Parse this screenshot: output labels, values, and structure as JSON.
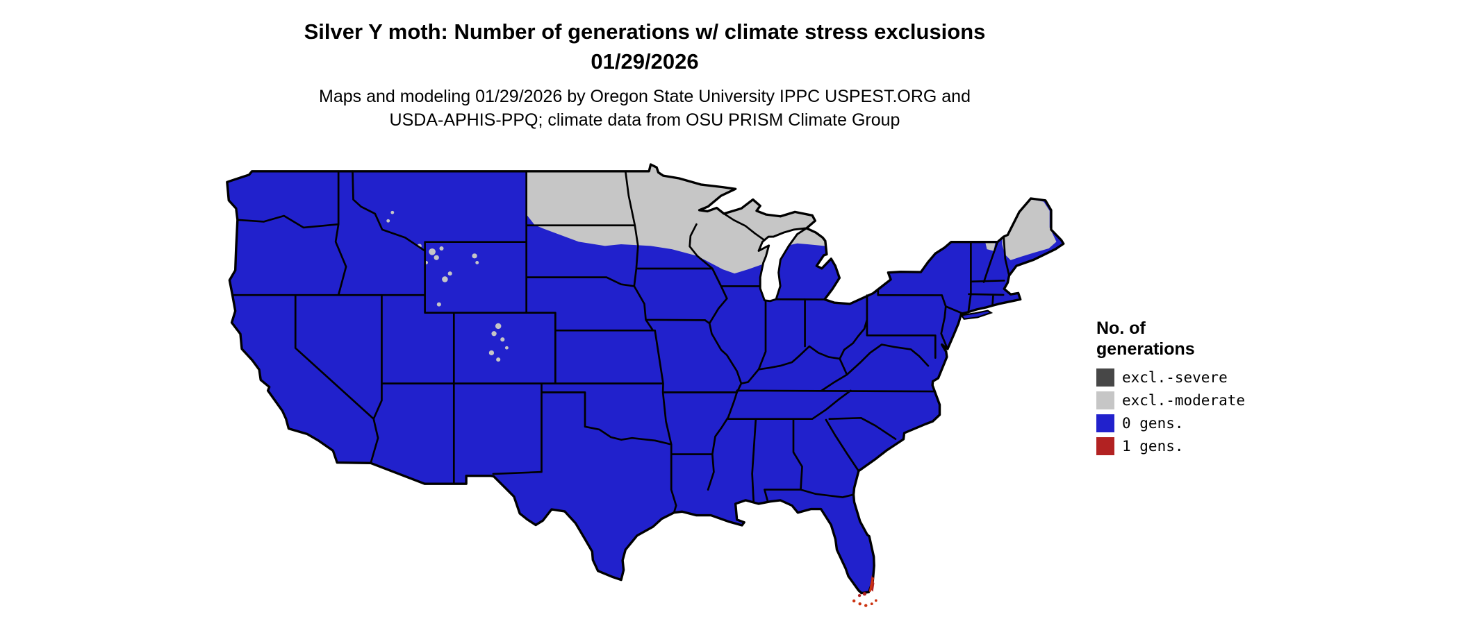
{
  "title": {
    "line1": "Silver Y moth: Number of generations w/ climate stress exclusions",
    "line2": "01/29/2026"
  },
  "subtitle": {
    "line1": "Maps and modeling 01/29/2026 by Oregon State University IPPC USPEST.ORG and",
    "line2": "USDA-APHIS-PPQ; climate data from OSU PRISM Climate Group"
  },
  "legend": {
    "title_line1": "No. of",
    "title_line2": "generations",
    "items": [
      {
        "label": "excl.-severe",
        "color": "#474747"
      },
      {
        "label": "excl.-moderate",
        "color": "#C6C6C6"
      },
      {
        "label": "0 gens.",
        "color": "#2121CC"
      },
      {
        "label": "1 gens.",
        "color": "#B22222"
      }
    ]
  },
  "colors": {
    "background": "#FFFFFF",
    "border": "#000000",
    "excl_severe": "#474747",
    "excl_moderate": "#C6C6C6",
    "zero_gens": "#2121CC",
    "one_gen": "#B22222",
    "one_gen_bright": "#CC3311",
    "water": "#FFFFFF"
  },
  "map": {
    "region": "Conterminous United States",
    "zero_generation_areas": "Most of the conterminous United States (blue)",
    "moderate_exclusion_areas": "North Dakota, Minnesota, Wisconsin, upper and northern Michigan, northern Maine, scattered Rocky Mountain high elevations (gray)",
    "one_generation_areas": "Southern tip of Florida and the Florida Keys (red)"
  }
}
